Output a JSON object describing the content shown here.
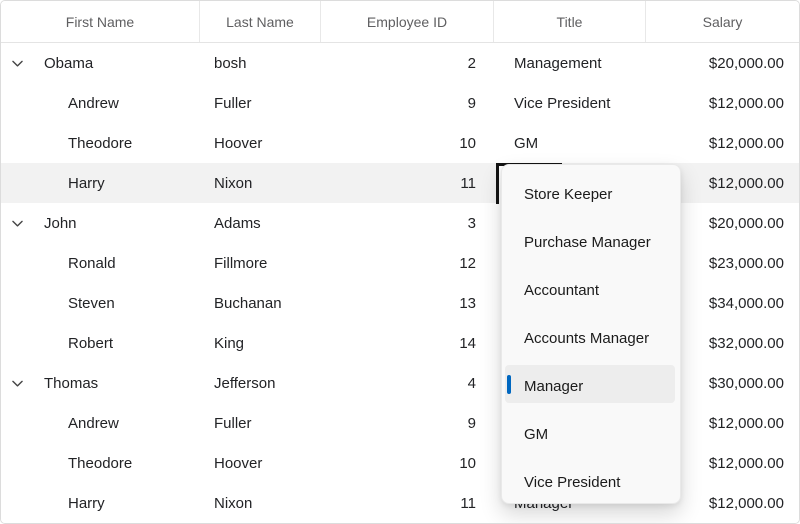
{
  "table": {
    "columns": [
      {
        "label": "First Name"
      },
      {
        "label": "Last Name"
      },
      {
        "label": "Employee ID"
      },
      {
        "label": "Title"
      },
      {
        "label": "Salary"
      }
    ],
    "rows": [
      {
        "first": "Obama",
        "last": "bosh",
        "id": "2",
        "title": "Management",
        "salary": "$20,000.00",
        "level": 0,
        "expander": true,
        "selected": false
      },
      {
        "first": "Andrew",
        "last": "Fuller",
        "id": "9",
        "title": "Vice President",
        "salary": "$12,000.00",
        "level": 1,
        "expander": false,
        "selected": false
      },
      {
        "first": "Theodore",
        "last": "Hoover",
        "id": "10",
        "title": "GM",
        "salary": "$12,000.00",
        "level": 1,
        "expander": false,
        "selected": false
      },
      {
        "first": "Harry",
        "last": "Nixon",
        "id": "11",
        "title": "",
        "salary": "$12,000.00",
        "level": 1,
        "expander": false,
        "selected": true
      },
      {
        "first": "John",
        "last": "Adams",
        "id": "3",
        "title": "",
        "salary": "$20,000.00",
        "level": 0,
        "expander": true,
        "selected": false
      },
      {
        "first": "Ronald",
        "last": "Fillmore",
        "id": "12",
        "title": "",
        "salary": "$23,000.00",
        "level": 1,
        "expander": false,
        "selected": false
      },
      {
        "first": "Steven",
        "last": "Buchanan",
        "id": "13",
        "title": "",
        "salary": "$34,000.00",
        "level": 1,
        "expander": false,
        "selected": false
      },
      {
        "first": "Robert",
        "last": "King",
        "id": "14",
        "title": "",
        "salary": "$32,000.00",
        "level": 1,
        "expander": false,
        "selected": false
      },
      {
        "first": "Thomas",
        "last": "Jefferson",
        "id": "4",
        "title": "",
        "salary": "$30,000.00",
        "level": 0,
        "expander": true,
        "selected": false
      },
      {
        "first": "Andrew",
        "last": "Fuller",
        "id": "9",
        "title": "",
        "salary": "$12,000.00",
        "level": 1,
        "expander": false,
        "selected": false
      },
      {
        "first": "Theodore",
        "last": "Hoover",
        "id": "10",
        "title": "",
        "salary": "$12,000.00",
        "level": 1,
        "expander": false,
        "selected": false
      },
      {
        "first": "Harry",
        "last": "Nixon",
        "id": "11",
        "title": "Manager",
        "salary": "$12,000.00",
        "level": 1,
        "expander": false,
        "selected": false
      }
    ]
  },
  "dropdown": {
    "accent_color": "#0067c0",
    "items": [
      {
        "label": "Store Keeper",
        "selected": false
      },
      {
        "label": "Purchase Manager",
        "selected": false
      },
      {
        "label": "Accountant",
        "selected": false
      },
      {
        "label": "Accounts Manager",
        "selected": false
      },
      {
        "label": "Manager",
        "selected": true
      },
      {
        "label": "GM",
        "selected": false
      },
      {
        "label": "Vice President",
        "selected": false
      }
    ]
  }
}
